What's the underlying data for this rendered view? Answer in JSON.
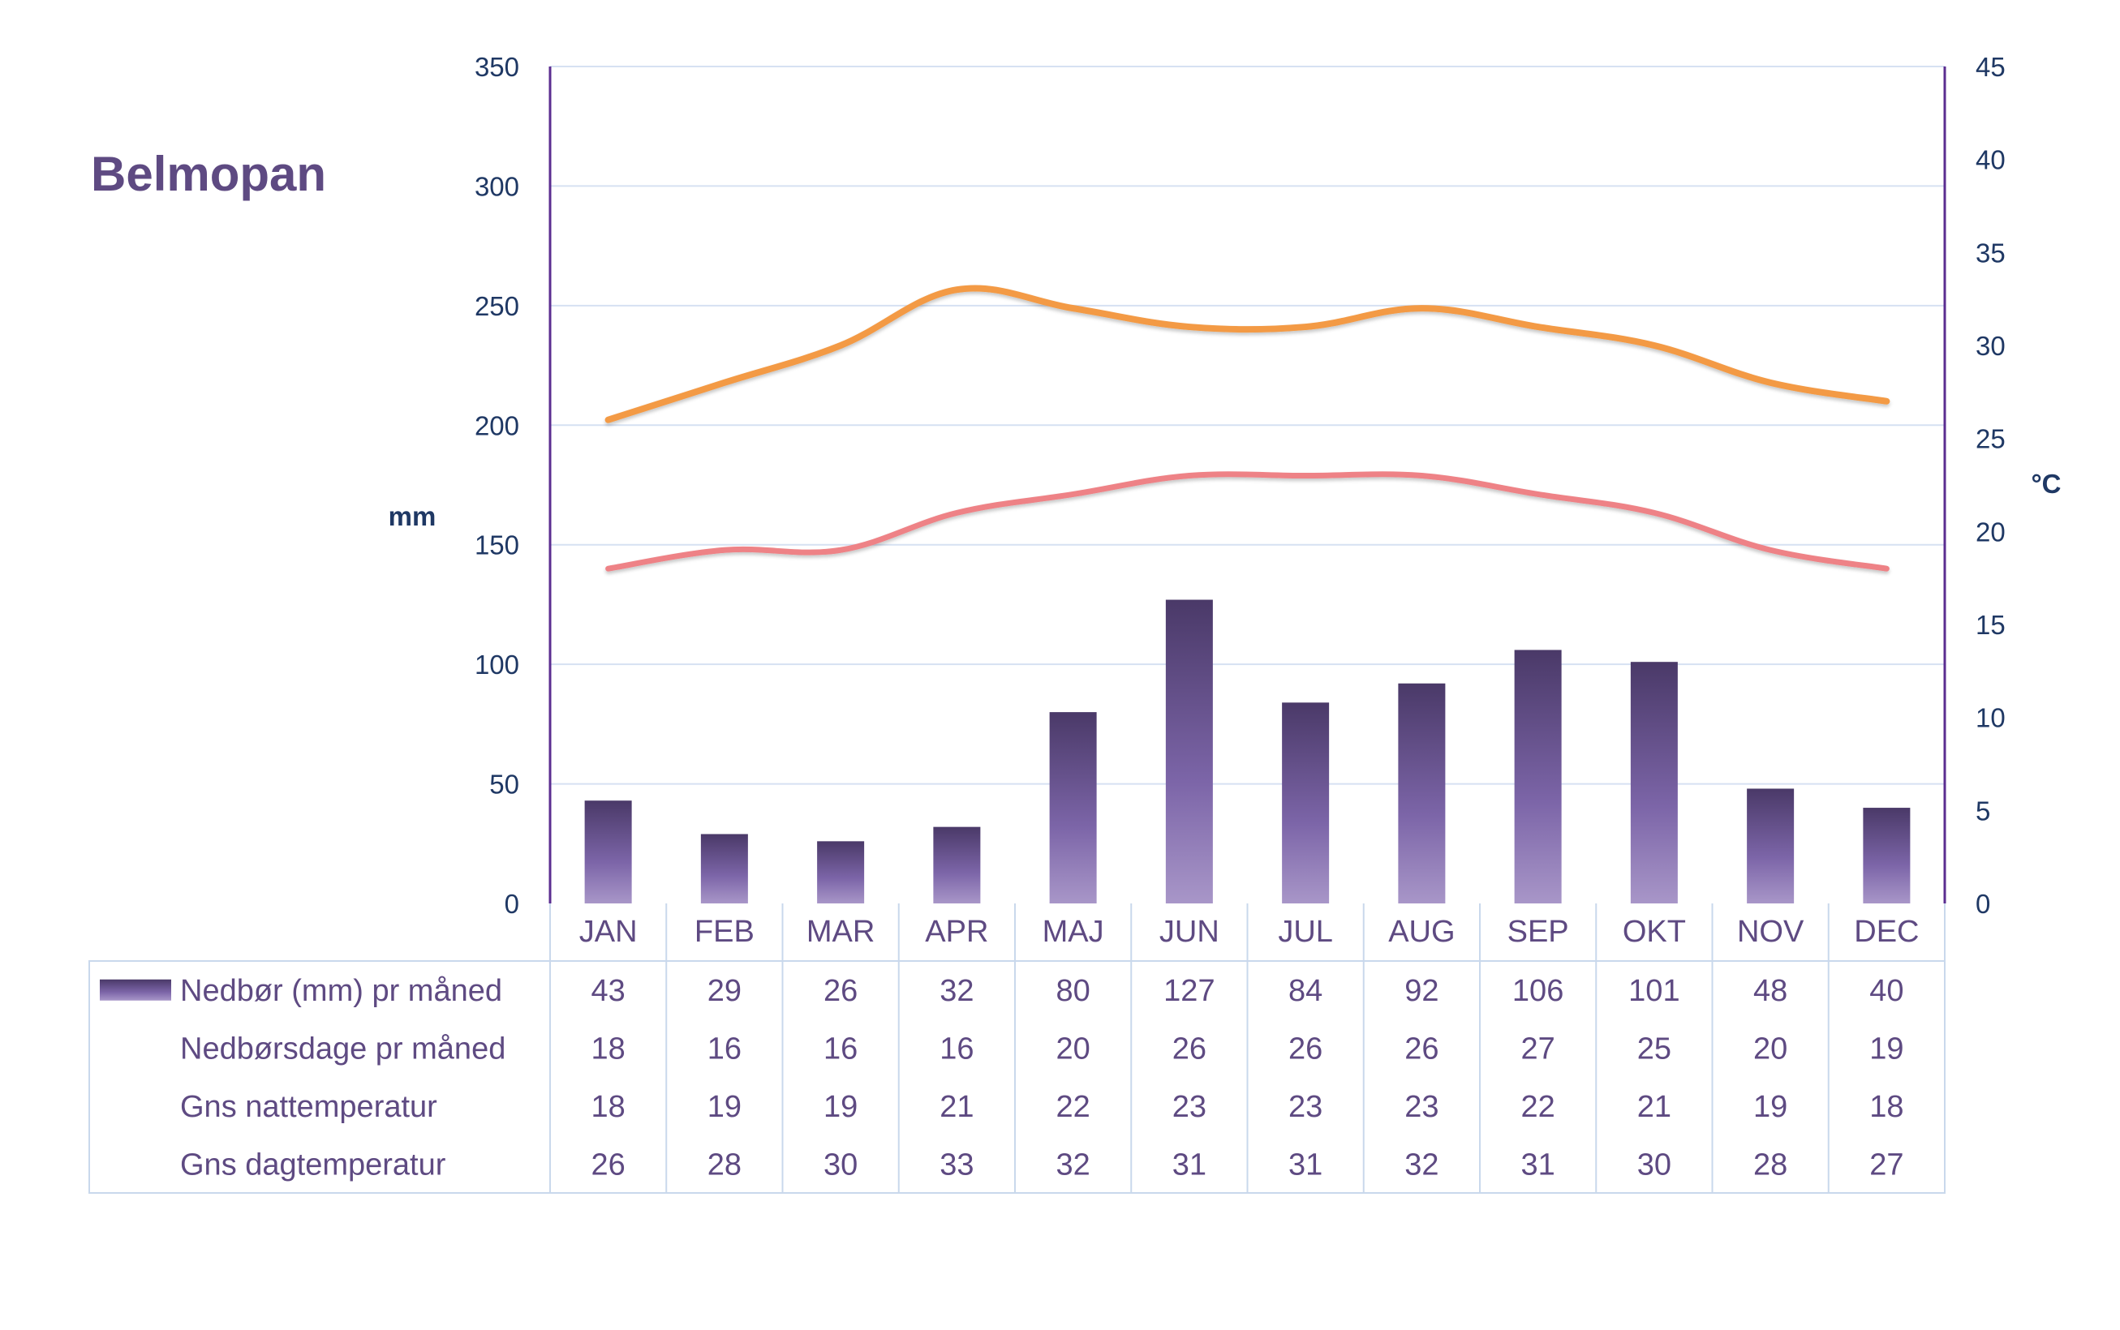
{
  "chart_data": {
    "type": "bar",
    "title": "Belmopan",
    "categories": [
      "JAN",
      "FEB",
      "MAR",
      "APR",
      "MAJ",
      "JUN",
      "JUL",
      "AUG",
      "SEP",
      "OKT",
      "NOV",
      "DEC"
    ],
    "y_left": {
      "label": "mm",
      "range": [
        0,
        350
      ],
      "ticks": [
        0,
        50,
        100,
        150,
        200,
        250,
        300,
        350
      ]
    },
    "y_right": {
      "label": "°C",
      "range": [
        0,
        45
      ],
      "ticks": [
        0,
        5,
        10,
        15,
        20,
        25,
        30,
        35,
        40,
        45
      ]
    },
    "grid": true,
    "legend_placement": "table-bottom",
    "series": [
      {
        "name": "Nedbør (mm) pr måned",
        "kind": "bar",
        "axis": "left",
        "values": [
          43,
          29,
          26,
          32,
          80,
          127,
          84,
          92,
          106,
          101,
          48,
          40
        ]
      },
      {
        "name": "Nedbørsdage pr måned",
        "kind": "table-only",
        "values": [
          18,
          16,
          16,
          16,
          20,
          26,
          26,
          26,
          27,
          25,
          20,
          19
        ]
      },
      {
        "name": "Gns nattemperatur",
        "kind": "line",
        "axis": "right",
        "values": [
          18,
          19,
          19,
          21,
          22,
          23,
          23,
          23,
          22,
          21,
          19,
          18
        ]
      },
      {
        "name": "Gns dagtemperatur",
        "kind": "line",
        "axis": "right",
        "values": [
          26,
          28,
          30,
          33,
          32,
          31,
          31,
          32,
          31,
          30,
          28,
          27
        ]
      }
    ]
  },
  "colors": {
    "title": "#5E4A82",
    "axis_text": "#1F3864",
    "axis_line": "#5B2D90",
    "grid": "#D6E1F2",
    "bar_top": "#4A3968",
    "bar_mid": "#7C65A8",
    "bar_bottom": "#A896C8",
    "night_line": "#EE8286",
    "day_line": "#F39A45",
    "table_text": "#5E4A82",
    "table_border": "#C9D8EC"
  }
}
